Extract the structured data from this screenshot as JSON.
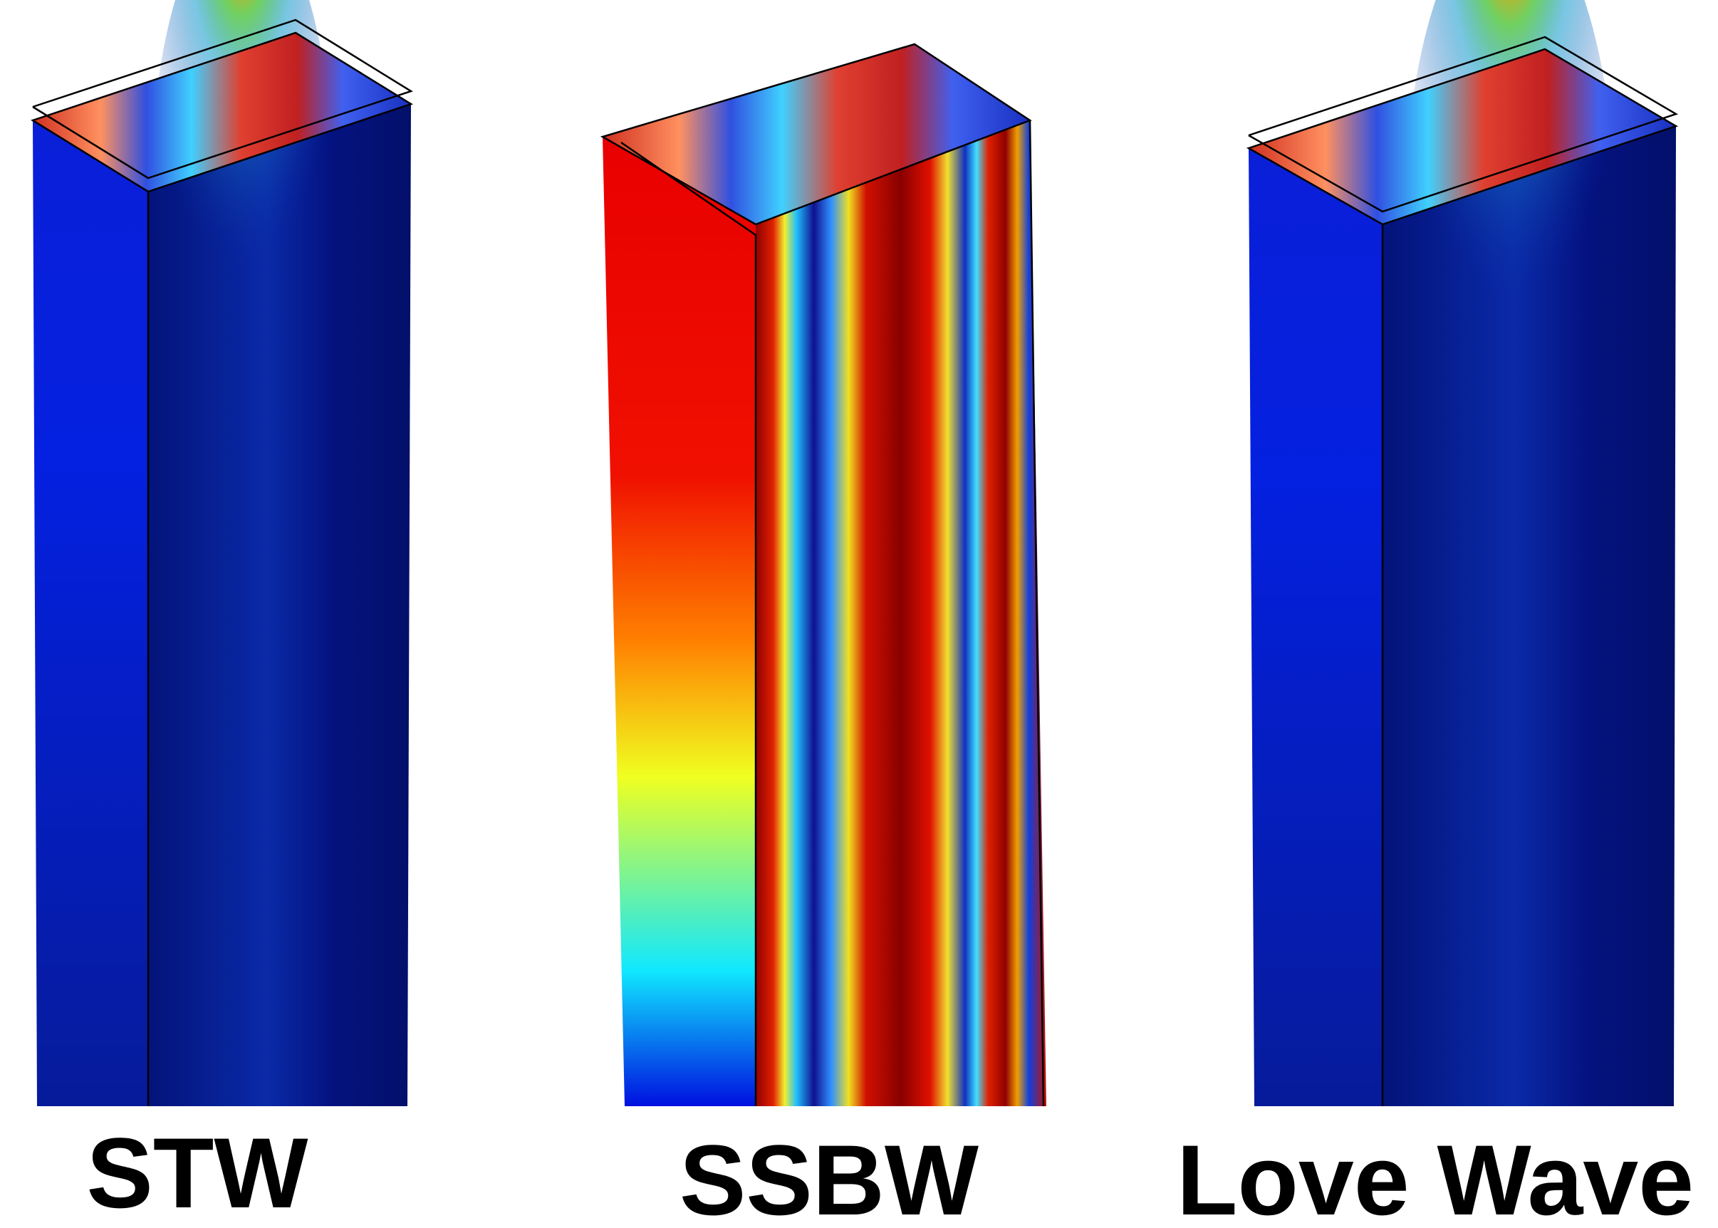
{
  "panels": [
    {
      "label": "STW"
    },
    {
      "label": "SSBW"
    },
    {
      "label": "Love Wave"
    }
  ]
}
